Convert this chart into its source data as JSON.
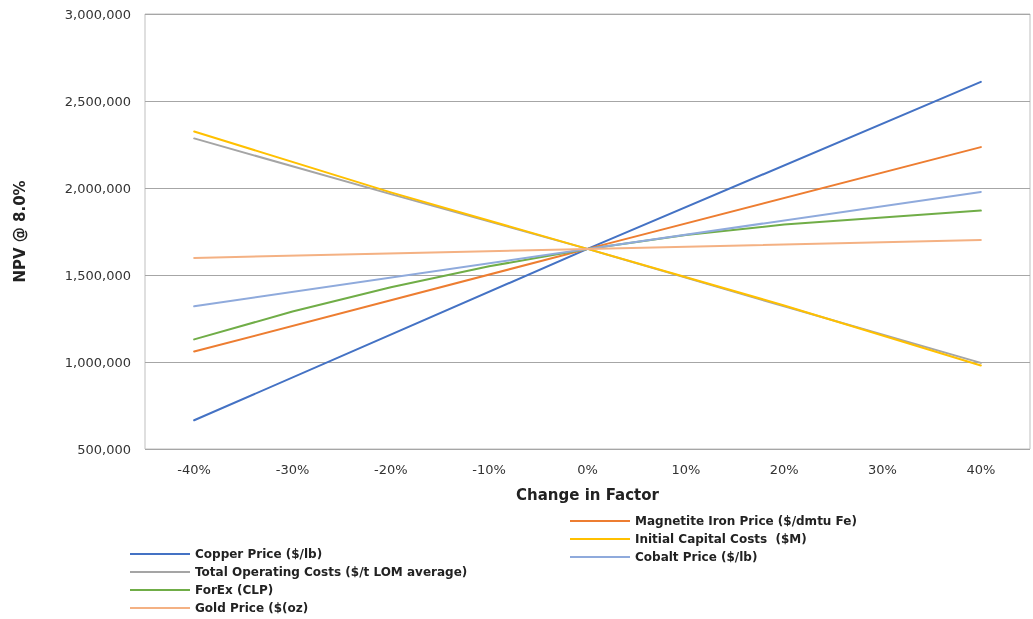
{
  "chart_data": {
    "type": "line",
    "xlabel": "Change in Factor",
    "ylabel": "NPV @ 8.0%",
    "xlim": [
      -45,
      45
    ],
    "xticks": [
      {
        "value": -40,
        "label": "-40%"
      },
      {
        "value": -30,
        "label": "-30%"
      },
      {
        "value": -20,
        "label": "-20%"
      },
      {
        "value": -10,
        "label": "-10%"
      },
      {
        "value": 0,
        "label": "0%"
      },
      {
        "value": 10,
        "label": "10%"
      },
      {
        "value": 20,
        "label": "20%"
      },
      {
        "value": 30,
        "label": "30%"
      },
      {
        "value": 40,
        "label": "40%"
      }
    ],
    "ylim": [
      500000,
      3000000
    ],
    "yticks": [
      {
        "value": 500000,
        "label": "500,000"
      },
      {
        "value": 1000000,
        "label": "1,000,000"
      },
      {
        "value": 1500000,
        "label": "1,500,000"
      },
      {
        "value": 2000000,
        "label": "2,000,000"
      },
      {
        "value": 2500000,
        "label": "2,500,000"
      },
      {
        "value": 3000000,
        "label": "3,000,000"
      }
    ],
    "grid": "y",
    "legend": "bottom",
    "marker": "none",
    "line_style": "solid",
    "series": [
      {
        "name": "Copper Price ($/lb)",
        "color": "#4472c4",
        "x": [
          -40,
          0,
          40
        ],
        "values": [
          665000,
          1650000,
          2610000
        ]
      },
      {
        "name": "Magnetite Iron Price ($/dmtu Fe)",
        "color": "#ed7d31",
        "x": [
          -40,
          0,
          40
        ],
        "values": [
          1060000,
          1650000,
          2235000
        ]
      },
      {
        "name": "Total Operating Costs ($/t LOM average)",
        "color": "#a5a5a5",
        "x": [
          -40,
          -20,
          0,
          20,
          40
        ],
        "values": [
          2285000,
          1965000,
          1650000,
          1320000,
          995000
        ]
      },
      {
        "name": "Initial Capital Costs  ($M)",
        "color": "#ffc000",
        "x": [
          -40,
          -20,
          0,
          20,
          40
        ],
        "values": [
          2325000,
          1975000,
          1650000,
          1325000,
          980000
        ]
      },
      {
        "name": "ForEx (CLP)",
        "color": "#70ad47",
        "x": [
          -40,
          -30,
          -20,
          -10,
          0,
          10,
          20,
          30,
          40
        ],
        "values": [
          1130000,
          1290000,
          1430000,
          1550000,
          1650000,
          1730000,
          1790000,
          1830000,
          1870000
        ]
      },
      {
        "name": "Cobalt Price ($/lb)",
        "color": "#8faadc",
        "x": [
          -40,
          0,
          40
        ],
        "values": [
          1320000,
          1650000,
          1977000
        ]
      },
      {
        "name": "Gold Price ($(oz)",
        "color": "#f4b183",
        "x": [
          -40,
          0,
          40
        ],
        "values": [
          1598000,
          1650000,
          1701000
        ]
      }
    ]
  }
}
